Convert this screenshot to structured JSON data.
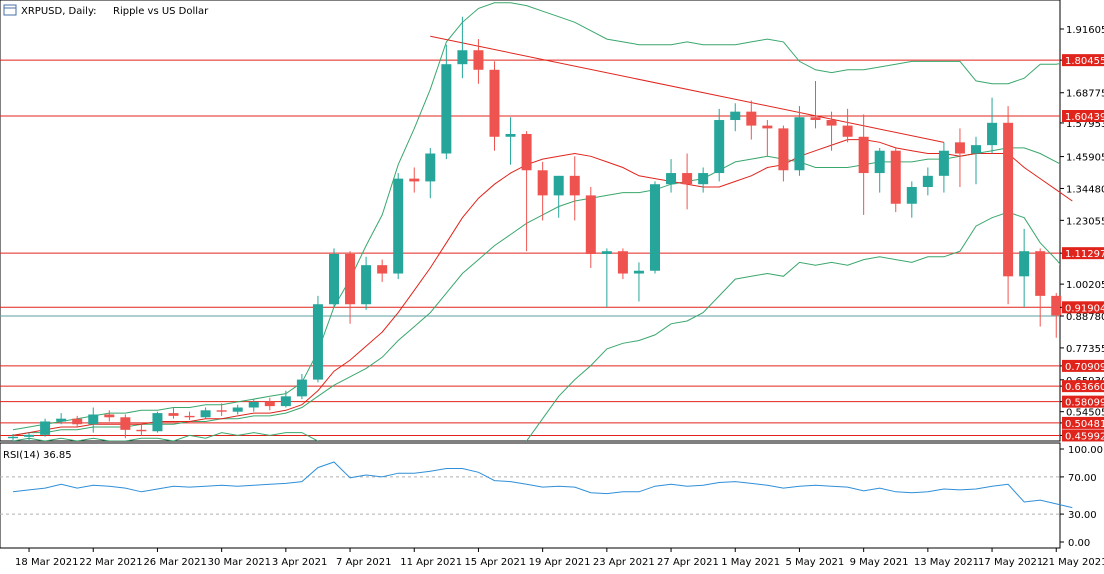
{
  "window": {
    "symbol": "XRPUSD, Daily:",
    "description": "Ripple vs US Dollar",
    "icon": "chart-window-icon"
  },
  "colors": {
    "bull": "#26a69a",
    "bear": "#ef5350",
    "level_line": "#e0241c",
    "level_label_bg": "#e0241c",
    "trendline": "#e0241c",
    "ma": "#e0241c",
    "bollinger": "#3aa76d",
    "rsi_line": "#2f8fd8",
    "grid_level": "#b0b0b0",
    "current_price_line": "#5f9ea0",
    "axis": "#000000"
  },
  "price_axis": {
    "labels": [
      "1.91605",
      "1.80455",
      "1.68775",
      "1.57953",
      "1.45905",
      "1.34480",
      "1.23055",
      "1.11297",
      "1.00205",
      "0.91904",
      "0.88780",
      "0.77355",
      "0.70909",
      "0.65930",
      "0.63660",
      "0.58099",
      "0.54505",
      "0.50481",
      "0.45992"
    ]
  },
  "rsi_panel": {
    "label": "RSI(14) 36.85",
    "scale_labels": [
      "100.00",
      "70.00",
      "30.00",
      "0.00"
    ],
    "levels": [
      70,
      30
    ]
  },
  "time_axis": {
    "labels": [
      "18 Mar 2021",
      "22 Mar 2021",
      "26 Mar 2021",
      "30 Mar 2021",
      "3 Apr 2021",
      "7 Apr 2021",
      "11 Apr 2021",
      "15 Apr 2021",
      "19 Apr 2021",
      "23 Apr 2021",
      "27 Apr 2021",
      "1 May 2021",
      "5 May 2021",
      "9 May 2021",
      "13 May 2021",
      "17 May 2021",
      "21 May 2021"
    ]
  },
  "chart_data": {
    "type": "candlestick",
    "title": "XRPUSD, Daily: Ripple vs US Dollar",
    "ylim": [
      0.44,
      2.02
    ],
    "horizontal_levels": [
      1.80455,
      1.60439,
      1.11297,
      0.91904,
      0.70909,
      0.6366,
      0.58099,
      0.50481,
      0.45992
    ],
    "level_labels": [
      "1.80455",
      "1.60439",
      "1.11297",
      "0.91904",
      "0.70909",
      "0.63660",
      "0.58099",
      "0.50481",
      "0.45992"
    ],
    "current_price": 0.8878,
    "trendline": {
      "from": [
        "12 Apr 2021",
        1.89
      ],
      "to": [
        "14 May 2021",
        1.51
      ]
    },
    "candles": [
      {
        "date": "17 Mar 2021",
        "open": 0.45,
        "high": 0.465,
        "low": 0.44,
        "close": 0.455
      },
      {
        "date": "18 Mar 2021",
        "open": 0.455,
        "high": 0.47,
        "low": 0.44,
        "close": 0.462
      },
      {
        "date": "19 Mar 2021",
        "open": 0.462,
        "high": 0.52,
        "low": 0.455,
        "close": 0.51
      },
      {
        "date": "20 Mar 2021",
        "open": 0.51,
        "high": 0.54,
        "low": 0.5,
        "close": 0.52
      },
      {
        "date": "21 Mar 2021",
        "open": 0.52,
        "high": 0.53,
        "low": 0.49,
        "close": 0.5
      },
      {
        "date": "22 Mar 2021",
        "open": 0.5,
        "high": 0.56,
        "low": 0.47,
        "close": 0.535
      },
      {
        "date": "23 Mar 2021",
        "open": 0.535,
        "high": 0.55,
        "low": 0.51,
        "close": 0.525
      },
      {
        "date": "24 Mar 2021",
        "open": 0.525,
        "high": 0.535,
        "low": 0.45,
        "close": 0.48
      },
      {
        "date": "25 Mar 2021",
        "open": 0.48,
        "high": 0.5,
        "low": 0.46,
        "close": 0.475
      },
      {
        "date": "26 Mar 2021",
        "open": 0.475,
        "high": 0.545,
        "low": 0.47,
        "close": 0.54
      },
      {
        "date": "27 Mar 2021",
        "open": 0.54,
        "high": 0.56,
        "low": 0.52,
        "close": 0.53
      },
      {
        "date": "28 Mar 2021",
        "open": 0.53,
        "high": 0.545,
        "low": 0.515,
        "close": 0.525
      },
      {
        "date": "29 Mar 2021",
        "open": 0.525,
        "high": 0.56,
        "low": 0.52,
        "close": 0.55
      },
      {
        "date": "30 Mar 2021",
        "open": 0.55,
        "high": 0.575,
        "low": 0.53,
        "close": 0.545
      },
      {
        "date": "31 Mar 2021",
        "open": 0.545,
        "high": 0.57,
        "low": 0.535,
        "close": 0.56
      },
      {
        "date": "1 Apr 2021",
        "open": 0.56,
        "high": 0.59,
        "low": 0.545,
        "close": 0.58
      },
      {
        "date": "2 Apr 2021",
        "open": 0.58,
        "high": 0.595,
        "low": 0.55,
        "close": 0.565
      },
      {
        "date": "3 Apr 2021",
        "open": 0.565,
        "high": 0.62,
        "low": 0.56,
        "close": 0.6
      },
      {
        "date": "4 Apr 2021",
        "open": 0.6,
        "high": 0.68,
        "low": 0.59,
        "close": 0.66
      },
      {
        "date": "5 Apr 2021",
        "open": 0.66,
        "high": 0.96,
        "low": 0.65,
        "close": 0.93
      },
      {
        "date": "6 Apr 2021",
        "open": 0.93,
        "high": 1.13,
        "low": 0.92,
        "close": 1.11
      },
      {
        "date": "7 Apr 2021",
        "open": 1.11,
        "high": 1.12,
        "low": 0.86,
        "close": 0.93
      },
      {
        "date": "8 Apr 2021",
        "open": 0.93,
        "high": 1.1,
        "low": 0.91,
        "close": 1.07
      },
      {
        "date": "9 Apr 2021",
        "open": 1.07,
        "high": 1.09,
        "low": 1.01,
        "close": 1.04
      },
      {
        "date": "10 Apr 2021",
        "open": 1.04,
        "high": 1.4,
        "low": 1.02,
        "close": 1.38
      },
      {
        "date": "11 Apr 2021",
        "open": 1.38,
        "high": 1.42,
        "low": 1.33,
        "close": 1.37
      },
      {
        "date": "12 Apr 2021",
        "open": 1.37,
        "high": 1.49,
        "low": 1.31,
        "close": 1.47
      },
      {
        "date": "13 Apr 2021",
        "open": 1.47,
        "high": 1.86,
        "low": 1.45,
        "close": 1.79
      },
      {
        "date": "14 Apr 2021",
        "open": 1.79,
        "high": 1.96,
        "low": 1.74,
        "close": 1.84
      },
      {
        "date": "15 Apr 2021",
        "open": 1.84,
        "high": 1.88,
        "low": 1.72,
        "close": 1.77
      },
      {
        "date": "16 Apr 2021",
        "open": 1.77,
        "high": 1.8,
        "low": 1.48,
        "close": 1.53
      },
      {
        "date": "17 Apr 2021",
        "open": 1.53,
        "high": 1.6,
        "low": 1.43,
        "close": 1.54
      },
      {
        "date": "18 Apr 2021",
        "open": 1.54,
        "high": 1.55,
        "low": 1.12,
        "close": 1.41
      },
      {
        "date": "19 Apr 2021",
        "open": 1.41,
        "high": 1.44,
        "low": 1.23,
        "close": 1.32
      },
      {
        "date": "20 Apr 2021",
        "open": 1.32,
        "high": 1.39,
        "low": 1.24,
        "close": 1.39
      },
      {
        "date": "21 Apr 2021",
        "open": 1.39,
        "high": 1.46,
        "low": 1.23,
        "close": 1.32
      },
      {
        "date": "22 Apr 2021",
        "open": 1.32,
        "high": 1.35,
        "low": 1.06,
        "close": 1.11
      },
      {
        "date": "23 Apr 2021",
        "open": 1.11,
        "high": 1.13,
        "low": 0.92,
        "close": 1.12
      },
      {
        "date": "24 Apr 2021",
        "open": 1.12,
        "high": 1.13,
        "low": 1.02,
        "close": 1.04
      },
      {
        "date": "25 Apr 2021",
        "open": 1.04,
        "high": 1.08,
        "low": 0.94,
        "close": 1.05
      },
      {
        "date": "26 Apr 2021",
        "open": 1.05,
        "high": 1.37,
        "low": 1.04,
        "close": 1.36
      },
      {
        "date": "27 Apr 2021",
        "open": 1.36,
        "high": 1.45,
        "low": 1.33,
        "close": 1.4
      },
      {
        "date": "28 Apr 2021",
        "open": 1.4,
        "high": 1.47,
        "low": 1.27,
        "close": 1.36
      },
      {
        "date": "29 Apr 2021",
        "open": 1.36,
        "high": 1.42,
        "low": 1.33,
        "close": 1.4
      },
      {
        "date": "30 Apr 2021",
        "open": 1.4,
        "high": 1.63,
        "low": 1.37,
        "close": 1.59
      },
      {
        "date": "1 May 2021",
        "open": 1.59,
        "high": 1.65,
        "low": 1.55,
        "close": 1.62
      },
      {
        "date": "2 May 2021",
        "open": 1.62,
        "high": 1.66,
        "low": 1.52,
        "close": 1.57
      },
      {
        "date": "3 May 2021",
        "open": 1.57,
        "high": 1.59,
        "low": 1.46,
        "close": 1.56
      },
      {
        "date": "4 May 2021",
        "open": 1.56,
        "high": 1.57,
        "low": 1.37,
        "close": 1.41
      },
      {
        "date": "5 May 2021",
        "open": 1.41,
        "high": 1.64,
        "low": 1.39,
        "close": 1.6
      },
      {
        "date": "6 May 2021",
        "open": 1.6,
        "high": 1.73,
        "low": 1.56,
        "close": 1.59
      },
      {
        "date": "7 May 2021",
        "open": 1.59,
        "high": 1.62,
        "low": 1.48,
        "close": 1.57
      },
      {
        "date": "8 May 2021",
        "open": 1.57,
        "high": 1.63,
        "low": 1.51,
        "close": 1.53
      },
      {
        "date": "9 May 2021",
        "open": 1.53,
        "high": 1.61,
        "low": 1.25,
        "close": 1.4
      },
      {
        "date": "10 May 2021",
        "open": 1.4,
        "high": 1.49,
        "low": 1.33,
        "close": 1.48
      },
      {
        "date": "11 May 2021",
        "open": 1.48,
        "high": 1.49,
        "low": 1.26,
        "close": 1.29
      },
      {
        "date": "12 May 2021",
        "open": 1.29,
        "high": 1.37,
        "low": 1.24,
        "close": 1.35
      },
      {
        "date": "13 May 2021",
        "open": 1.35,
        "high": 1.42,
        "low": 1.32,
        "close": 1.39
      },
      {
        "date": "14 May 2021",
        "open": 1.39,
        "high": 1.51,
        "low": 1.33,
        "close": 1.48
      },
      {
        "date": "15 May 2021",
        "open": 1.51,
        "high": 1.56,
        "low": 1.35,
        "close": 1.47
      },
      {
        "date": "16 May 2021",
        "open": 1.47,
        "high": 1.53,
        "low": 1.36,
        "close": 1.5
      },
      {
        "date": "17 May 2021",
        "open": 1.5,
        "high": 1.67,
        "low": 1.47,
        "close": 1.58
      },
      {
        "date": "18 May 2021",
        "open": 1.58,
        "high": 1.64,
        "low": 0.93,
        "close": 1.03
      },
      {
        "date": "19 May 2021",
        "open": 1.03,
        "high": 1.2,
        "low": 0.92,
        "close": 1.12
      },
      {
        "date": "20 May 2021",
        "open": 1.12,
        "high": 1.13,
        "low": 0.85,
        "close": 0.96
      },
      {
        "date": "21 May 2021",
        "open": 0.96,
        "high": 0.97,
        "low": 0.81,
        "close": 0.89
      }
    ],
    "indicators": {
      "moving_average": [
        0.46,
        0.47,
        0.48,
        0.49,
        0.49,
        0.5,
        0.5,
        0.5,
        0.5,
        0.51,
        0.51,
        0.51,
        0.52,
        0.52,
        0.53,
        0.54,
        0.54,
        0.55,
        0.57,
        0.62,
        0.69,
        0.73,
        0.78,
        0.83,
        0.9,
        0.98,
        1.06,
        1.15,
        1.24,
        1.31,
        1.36,
        1.4,
        1.43,
        1.45,
        1.46,
        1.47,
        1.46,
        1.44,
        1.42,
        1.39,
        1.38,
        1.37,
        1.36,
        1.35,
        1.35,
        1.37,
        1.39,
        1.42,
        1.43,
        1.46,
        1.48,
        1.5,
        1.52,
        1.52,
        1.51,
        1.49,
        1.48,
        1.47,
        1.47,
        1.46,
        1.47,
        1.47,
        1.47,
        1.42,
        1.38,
        1.34,
        1.3
      ],
      "bollinger_upper": [
        0.48,
        0.49,
        0.5,
        0.51,
        0.52,
        0.53,
        0.54,
        0.54,
        0.55,
        0.55,
        0.56,
        0.56,
        0.57,
        0.57,
        0.58,
        0.59,
        0.6,
        0.61,
        0.65,
        0.76,
        0.92,
        1.02,
        1.14,
        1.25,
        1.43,
        1.56,
        1.7,
        1.87,
        1.94,
        1.99,
        2.01,
        2.01,
        2.0,
        1.98,
        1.96,
        1.94,
        1.91,
        1.88,
        1.87,
        1.86,
        1.86,
        1.86,
        1.87,
        1.86,
        1.86,
        1.86,
        1.87,
        1.88,
        1.87,
        1.8,
        1.77,
        1.76,
        1.77,
        1.77,
        1.78,
        1.79,
        1.8,
        1.8,
        1.8,
        1.8,
        1.73,
        1.72,
        1.72,
        1.74,
        1.79,
        1.79,
        1.8
      ],
      "bollinger_middle": [
        0.46,
        0.47,
        0.47,
        0.48,
        0.48,
        0.49,
        0.49,
        0.49,
        0.5,
        0.5,
        0.5,
        0.51,
        0.51,
        0.52,
        0.52,
        0.53,
        0.53,
        0.54,
        0.56,
        0.6,
        0.64,
        0.67,
        0.7,
        0.74,
        0.8,
        0.85,
        0.9,
        0.97,
        1.04,
        1.09,
        1.14,
        1.18,
        1.22,
        1.25,
        1.28,
        1.3,
        1.31,
        1.32,
        1.33,
        1.33,
        1.34,
        1.36,
        1.37,
        1.38,
        1.41,
        1.44,
        1.45,
        1.46,
        1.45,
        1.44,
        1.42,
        1.42,
        1.42,
        1.43,
        1.44,
        1.44,
        1.44,
        1.45,
        1.45,
        1.46,
        1.47,
        1.48,
        1.49,
        1.49,
        1.47,
        1.44,
        1.41
      ],
      "bollinger_lower": [
        0.44,
        0.45,
        0.44,
        0.45,
        0.44,
        0.45,
        0.44,
        0.44,
        0.45,
        0.45,
        0.44,
        0.46,
        0.45,
        0.47,
        0.46,
        0.47,
        0.46,
        0.47,
        0.47,
        0.44,
        0.36,
        0.32,
        0.26,
        0.23,
        0.17,
        0.14,
        0.1,
        0.07,
        0.14,
        0.19,
        0.27,
        0.35,
        0.44,
        0.52,
        0.6,
        0.66,
        0.71,
        0.77,
        0.79,
        0.8,
        0.82,
        0.86,
        0.87,
        0.9,
        0.96,
        1.02,
        1.03,
        1.04,
        1.03,
        1.08,
        1.07,
        1.08,
        1.07,
        1.09,
        1.1,
        1.09,
        1.08,
        1.1,
        1.1,
        1.12,
        1.21,
        1.24,
        1.26,
        1.24,
        1.15,
        1.09,
        1.02
      ]
    },
    "rsi": {
      "name": "RSI(14)",
      "last": 36.85,
      "ylim": [
        0,
        100
      ],
      "values": [
        54,
        56,
        58,
        62,
        58,
        61,
        60,
        58,
        54,
        57,
        60,
        59,
        60,
        61,
        60,
        61,
        62,
        63,
        65,
        80,
        86,
        69,
        72,
        70,
        74,
        74,
        76,
        79,
        79,
        75,
        66,
        65,
        62,
        59,
        60,
        59,
        53,
        52,
        54,
        54,
        60,
        62,
        60,
        61,
        64,
        65,
        63,
        61,
        58,
        60,
        61,
        60,
        59,
        55,
        58,
        54,
        53,
        54,
        57,
        56,
        57,
        60,
        62,
        43,
        45,
        41,
        37
      ]
    }
  }
}
